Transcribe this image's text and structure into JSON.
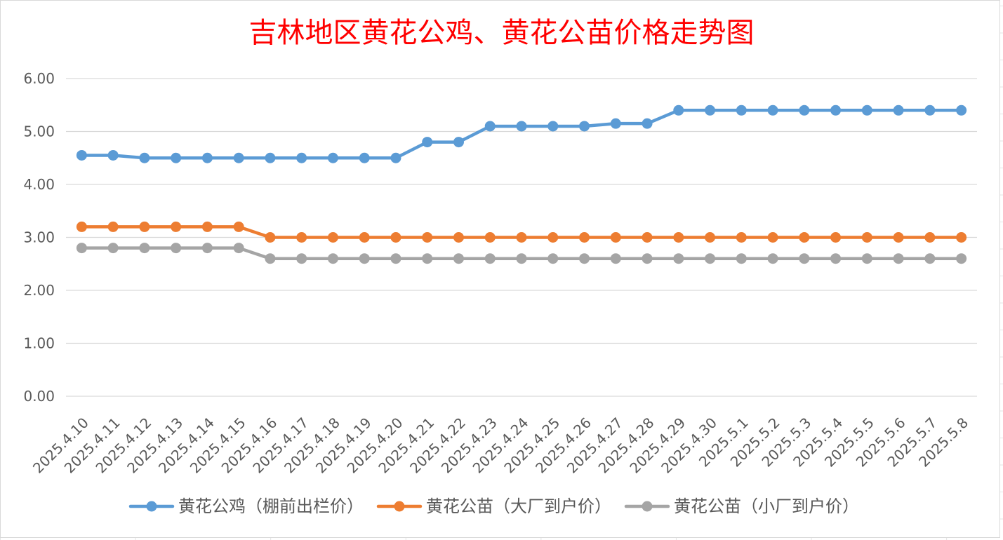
{
  "chart_data": {
    "type": "line",
    "title": "吉林地区黄花公鸡、黄花公苗价格走势图",
    "title_color": "#FF0000",
    "categories": [
      "2025.4.10",
      "2025.4.11",
      "2025.4.12",
      "2025.4.13",
      "2025.4.14",
      "2025.4.15",
      "2025.4.16",
      "2025.4.17",
      "2025.4.18",
      "2025.4.19",
      "2025.4.20",
      "2025.4.21",
      "2025.4.22",
      "2025.4.23",
      "2025.4.24",
      "2025.4.25",
      "2025.4.26",
      "2025.4.27",
      "2025.4.28",
      "2025.4.29",
      "2025.4.30",
      "2025.5.1",
      "2025.5.2",
      "2025.5.3",
      "2025.5.4",
      "2025.5.5",
      "2025.5.6",
      "2025.5.7",
      "2025.5.8"
    ],
    "ylim": [
      0,
      6
    ],
    "ytick_labels": [
      "0.00",
      "1.00",
      "2.00",
      "3.00",
      "4.00",
      "5.00",
      "6.00"
    ],
    "grid": "horizontal",
    "legend": "bottom",
    "series": [
      {
        "name": "黄花公鸡（棚前出栏价）",
        "color": "#5B9BD5",
        "values": [
          4.55,
          4.55,
          4.5,
          4.5,
          4.5,
          4.5,
          4.5,
          4.5,
          4.5,
          4.5,
          4.5,
          4.8,
          4.8,
          5.1,
          5.1,
          5.1,
          5.1,
          5.15,
          5.15,
          5.4,
          5.4,
          5.4,
          5.4,
          5.4,
          5.4,
          5.4,
          5.4,
          5.4,
          5.4
        ]
      },
      {
        "name": "黄花公苗（大厂到户价）",
        "color": "#ED7D31",
        "values": [
          3.2,
          3.2,
          3.2,
          3.2,
          3.2,
          3.2,
          3.0,
          3.0,
          3.0,
          3.0,
          3.0,
          3.0,
          3.0,
          3.0,
          3.0,
          3.0,
          3.0,
          3.0,
          3.0,
          3.0,
          3.0,
          3.0,
          3.0,
          3.0,
          3.0,
          3.0,
          3.0,
          3.0,
          3.0
        ]
      },
      {
        "name": "黄花公苗（小厂到户价）",
        "color": "#A5A5A5",
        "values": [
          2.8,
          2.8,
          2.8,
          2.8,
          2.8,
          2.8,
          2.6,
          2.6,
          2.6,
          2.6,
          2.6,
          2.6,
          2.6,
          2.6,
          2.6,
          2.6,
          2.6,
          2.6,
          2.6,
          2.6,
          2.6,
          2.6,
          2.6,
          2.6,
          2.6,
          2.6,
          2.6,
          2.6,
          2.6
        ]
      }
    ]
  }
}
